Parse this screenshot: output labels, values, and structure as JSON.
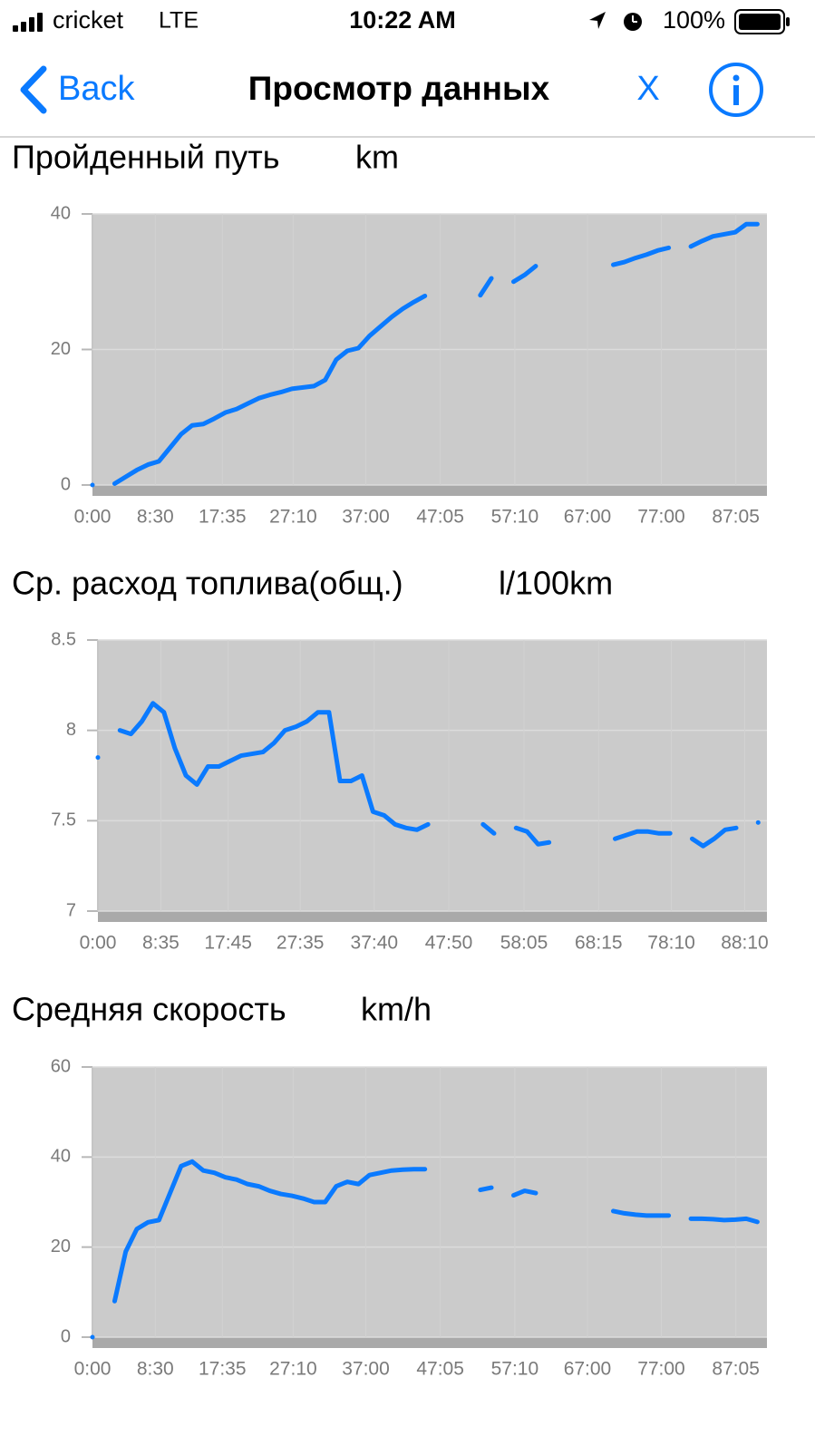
{
  "status_bar": {
    "carrier": "cricket",
    "network": "LTE",
    "time": "10:22 AM",
    "battery": "100%"
  },
  "nav": {
    "back": "Back",
    "title": "Просмотр данных",
    "close": "X"
  },
  "chart_data": [
    {
      "type": "line",
      "title": "Пройденный путь",
      "unit": "km",
      "color": "#0a7aff",
      "grid": true,
      "xlim": [
        0,
        91.3
      ],
      "ylim": [
        0,
        40
      ],
      "yticks": [
        0,
        20,
        40
      ],
      "xticks": [
        {
          "value": 0,
          "label": "0:00"
        },
        {
          "value": 8.5,
          "label": "8:30"
        },
        {
          "value": 17.58,
          "label": "17:35"
        },
        {
          "value": 27.17,
          "label": "27:10"
        },
        {
          "value": 37,
          "label": "37:00"
        },
        {
          "value": 47.08,
          "label": "47:05"
        },
        {
          "value": 57.17,
          "label": "57:10"
        },
        {
          "value": 67,
          "label": "67:00"
        },
        {
          "value": 77,
          "label": "77:00"
        },
        {
          "value": 87.08,
          "label": "87:05"
        }
      ],
      "x": [
        0,
        1.5,
        3,
        4.5,
        6,
        7.5,
        9,
        10.5,
        12,
        13.5,
        15,
        16.5,
        18,
        19.5,
        21,
        22.5,
        24,
        25.5,
        27,
        28.5,
        30,
        31.5,
        33,
        34.5,
        36,
        37.5,
        39,
        40.5,
        42,
        43.5,
        45,
        46.5,
        48,
        49.5,
        51,
        52.5,
        54,
        55.5,
        57,
        58.5,
        60,
        61.5,
        63,
        64.5,
        66,
        67.5,
        69,
        70.5,
        72,
        73.5,
        75,
        76.5,
        78,
        79.5,
        81,
        82.5,
        84,
        85.5,
        87,
        88.5,
        90
      ],
      "values": [
        0,
        null,
        0.2,
        1.2,
        2.2,
        3,
        3.5,
        5.5,
        7.5,
        8.8,
        9,
        9.8,
        10.7,
        11.2,
        12,
        12.8,
        13.3,
        13.7,
        14.2,
        14.4,
        14.6,
        15.5,
        18.5,
        19.8,
        20.2,
        22,
        23.4,
        24.8,
        26,
        27,
        27.9,
        null,
        null,
        null,
        null,
        28,
        30.5,
        null,
        30,
        31,
        32.3,
        null,
        null,
        null,
        null,
        null,
        null,
        32.5,
        32.9,
        33.5,
        34,
        34.6,
        35,
        null,
        35.2,
        36,
        36.7,
        37,
        37.3,
        38.5,
        38.5
      ]
    },
    {
      "type": "line",
      "title": "Ср. расход топлива(общ.)",
      "unit": "l/100km",
      "color": "#0a7aff",
      "grid": true,
      "xlim": [
        0,
        91.2
      ],
      "ylim": [
        7,
        8.5
      ],
      "yticks": [
        7,
        7.5,
        8,
        8.5
      ],
      "xticks": [
        {
          "value": 0,
          "label": "0:00"
        },
        {
          "value": 8.58,
          "label": "8:35"
        },
        {
          "value": 17.75,
          "label": "17:45"
        },
        {
          "value": 27.58,
          "label": "27:35"
        },
        {
          "value": 37.67,
          "label": "37:40"
        },
        {
          "value": 47.83,
          "label": "47:50"
        },
        {
          "value": 58.08,
          "label": "58:05"
        },
        {
          "value": 68.25,
          "label": "68:15"
        },
        {
          "value": 78.17,
          "label": "78:10"
        },
        {
          "value": 88.17,
          "label": "88:10"
        }
      ],
      "x": [
        0,
        1.5,
        3,
        4.5,
        6,
        7.5,
        9,
        10.5,
        12,
        13.5,
        15,
        16.5,
        18,
        19.5,
        21,
        22.5,
        24,
        25.5,
        27,
        28.5,
        30,
        31.5,
        33,
        34.5,
        36,
        37.5,
        39,
        40.5,
        42,
        43.5,
        45,
        46.5,
        48,
        49.5,
        51,
        52.5,
        54,
        55.5,
        57,
        58.5,
        60,
        61.5,
        63,
        64.5,
        66,
        67.5,
        69,
        70.5,
        72,
        73.5,
        75,
        76.5,
        78,
        79.5,
        81,
        82.5,
        84,
        85.5,
        87,
        88.5,
        90
      ],
      "values": [
        7.85,
        null,
        8.0,
        7.98,
        8.05,
        8.15,
        8.1,
        7.9,
        7.75,
        7.7,
        7.8,
        7.8,
        7.83,
        7.86,
        7.87,
        7.88,
        7.93,
        8.0,
        8.02,
        8.05,
        8.1,
        8.1,
        7.72,
        7.72,
        7.75,
        7.55,
        7.53,
        7.48,
        7.46,
        7.45,
        7.48,
        null,
        null,
        null,
        null,
        7.48,
        7.43,
        null,
        7.46,
        7.44,
        7.37,
        7.38,
        null,
        null,
        null,
        null,
        null,
        7.4,
        7.42,
        7.44,
        7.44,
        7.43,
        7.43,
        null,
        7.4,
        7.36,
        7.4,
        7.45,
        7.46,
        null,
        7.49
      ]
    },
    {
      "type": "line",
      "title": "Средняя скорость",
      "unit": "km/h",
      "color": "#0a7aff",
      "grid": true,
      "xlim": [
        0,
        91.3
      ],
      "ylim": [
        0,
        60
      ],
      "yticks": [
        0,
        20,
        40,
        60
      ],
      "xticks": [
        {
          "value": 0,
          "label": "0:00"
        },
        {
          "value": 8.5,
          "label": "8:30"
        },
        {
          "value": 17.58,
          "label": "17:35"
        },
        {
          "value": 27.17,
          "label": "27:10"
        },
        {
          "value": 37,
          "label": "37:00"
        },
        {
          "value": 47.08,
          "label": "47:05"
        },
        {
          "value": 57.17,
          "label": "57:10"
        },
        {
          "value": 67,
          "label": "67:00"
        },
        {
          "value": 77,
          "label": "77:00"
        },
        {
          "value": 87.08,
          "label": "87:05"
        }
      ],
      "x": [
        0,
        1.5,
        3,
        4.5,
        6,
        7.5,
        9,
        10.5,
        12,
        13.5,
        15,
        16.5,
        18,
        19.5,
        21,
        22.5,
        24,
        25.5,
        27,
        28.5,
        30,
        31.5,
        33,
        34.5,
        36,
        37.5,
        39,
        40.5,
        42,
        43.5,
        45,
        46.5,
        48,
        49.5,
        51,
        52.5,
        54,
        55.5,
        57,
        58.5,
        60,
        61.5,
        63,
        64.5,
        66,
        67.5,
        69,
        70.5,
        72,
        73.5,
        75,
        76.5,
        78,
        79.5,
        81,
        82.5,
        84,
        85.5,
        87,
        88.5,
        90
      ],
      "values": [
        0,
        null,
        8,
        19,
        24,
        25.5,
        26,
        32,
        38,
        39,
        37,
        36.5,
        35.5,
        35,
        34,
        33.5,
        32.5,
        31.8,
        31.4,
        30.8,
        30,
        30,
        33.5,
        34.5,
        34,
        36,
        36.5,
        37,
        37.2,
        37.3,
        37.3,
        null,
        null,
        null,
        null,
        32.7,
        33.2,
        null,
        31.5,
        32.5,
        32,
        null,
        null,
        null,
        null,
        null,
        null,
        28,
        27.5,
        27.2,
        27,
        27,
        27,
        null,
        26.3,
        26.3,
        26.2,
        26,
        26.1,
        26.3,
        25.6
      ]
    }
  ]
}
